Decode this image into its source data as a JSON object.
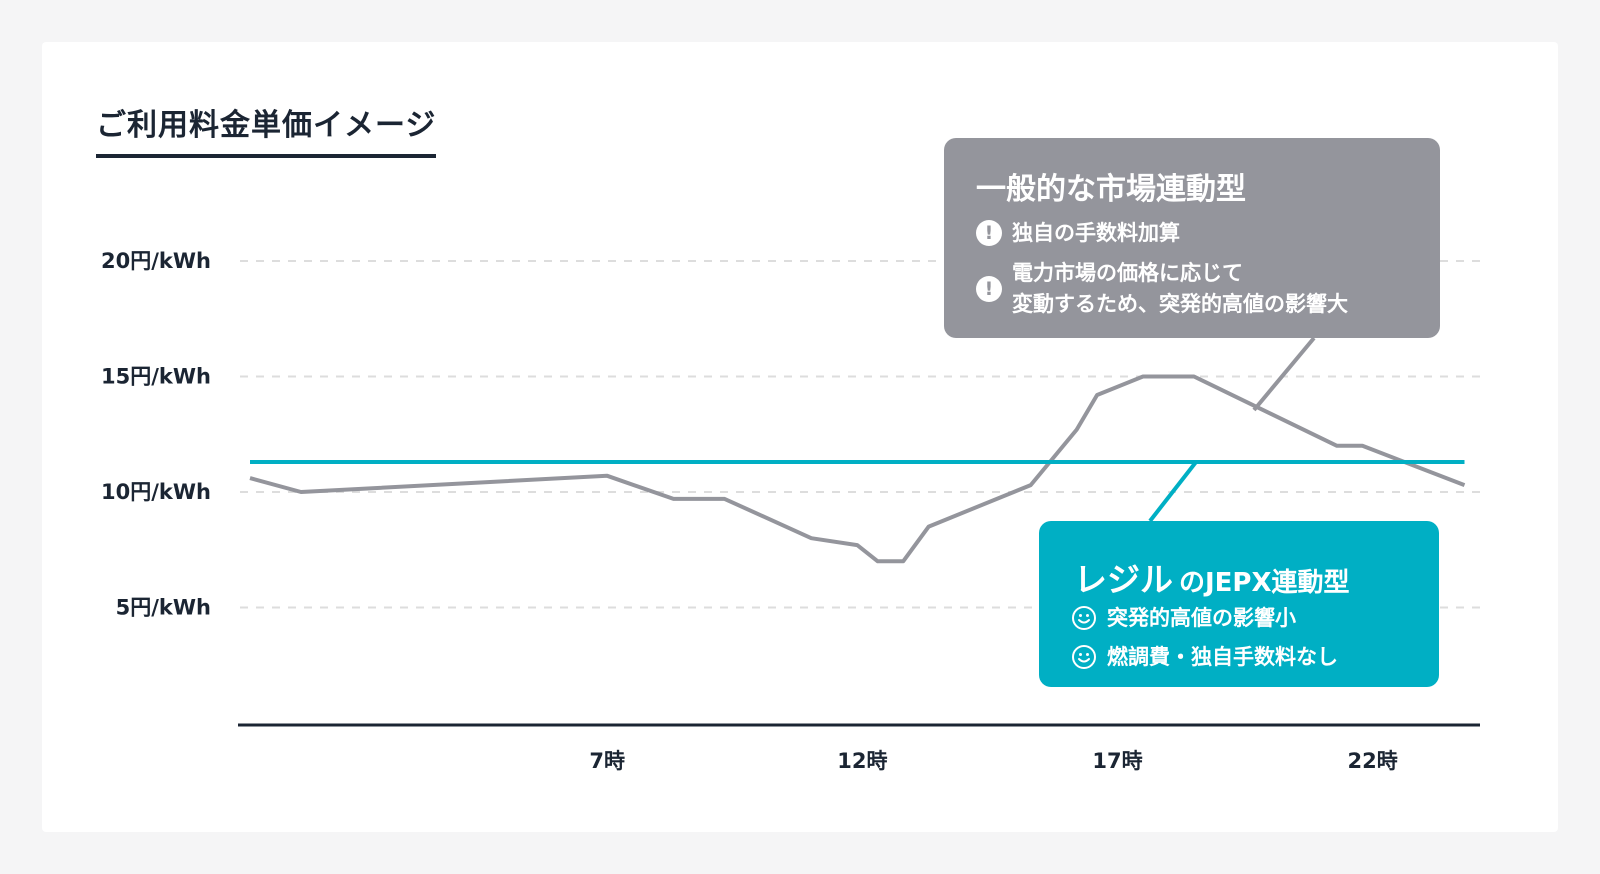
{
  "title": "ご利用料金単価イメージ",
  "colors": {
    "market_line": "#94959c",
    "plan_line": "#00afc4",
    "axis": "#1b2533",
    "grid": "#dddddd"
  },
  "chart_data": {
    "type": "line",
    "x_ticks": [
      "7時",
      "12時",
      "17時",
      "22時"
    ],
    "y_ticks": [
      "5円/kWh",
      "10円/kWh",
      "15円/kWh",
      "20円/kWh"
    ],
    "y_tick_values": [
      5,
      10,
      15,
      20
    ],
    "x_tick_values": [
      7,
      12,
      17,
      22
    ],
    "xlim": [
      0,
      24.3
    ],
    "ylim": [
      0,
      22
    ],
    "grid": true,
    "series": [
      {
        "name": "一般的な市場連動型",
        "x": [
          0,
          1,
          7,
          8.3,
          9.3,
          11,
          11.9,
          12.3,
          12.8,
          13.3,
          15.3,
          16.2,
          16.6,
          17.5,
          18.5,
          21.3,
          21.8,
          23.8
        ],
        "y": [
          10.6,
          10.0,
          10.7,
          9.7,
          9.7,
          8.0,
          7.7,
          7.0,
          7.0,
          8.5,
          10.3,
          12.7,
          14.2,
          15.0,
          15.0,
          12.0,
          12.0,
          10.3
        ]
      },
      {
        "name": "レジル のJEPX連動型",
        "x": [
          0,
          23.8
        ],
        "y": [
          11.3,
          11.3
        ]
      }
    ]
  },
  "callouts": {
    "market": {
      "title": "一般的な市場連動型",
      "items": [
        {
          "icon": "exclamation-icon",
          "text": "独自の手数料加算"
        },
        {
          "icon": "exclamation-icon",
          "text": "電力市場の価格に応じて\n変動するため、突発的高値の影響大"
        }
      ]
    },
    "plan": {
      "title_brand": "レジル",
      "title_rest": "のJEPX連動型",
      "items": [
        {
          "icon": "smile-icon",
          "text": "突発的高値の影響小"
        },
        {
          "icon": "smile-icon",
          "text": "燃調費・独自手数料なし"
        }
      ]
    }
  }
}
